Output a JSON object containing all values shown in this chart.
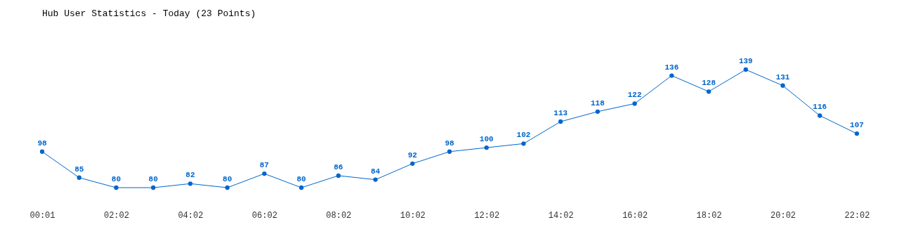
{
  "chart_data": {
    "type": "line",
    "title": "Hub User Statistics - Today (23 Points)",
    "categories": [
      "00:01",
      null,
      "02:02",
      null,
      "04:02",
      null,
      "06:02",
      null,
      "08:02",
      null,
      "10:02",
      null,
      "12:02",
      null,
      "14:02",
      null,
      "16:02",
      null,
      "18:02",
      null,
      "20:02",
      null,
      "22:02"
    ],
    "series": [
      {
        "color": "#0066cc",
        "values": [
          98,
          85,
          80,
          80,
          82,
          80,
          87,
          80,
          86,
          84,
          92,
          98,
          100,
          102,
          113,
          118,
          122,
          136,
          128,
          139,
          131,
          116,
          107
        ]
      }
    ],
    "data_labels": true,
    "marker": "circle",
    "line_style": "solid"
  }
}
